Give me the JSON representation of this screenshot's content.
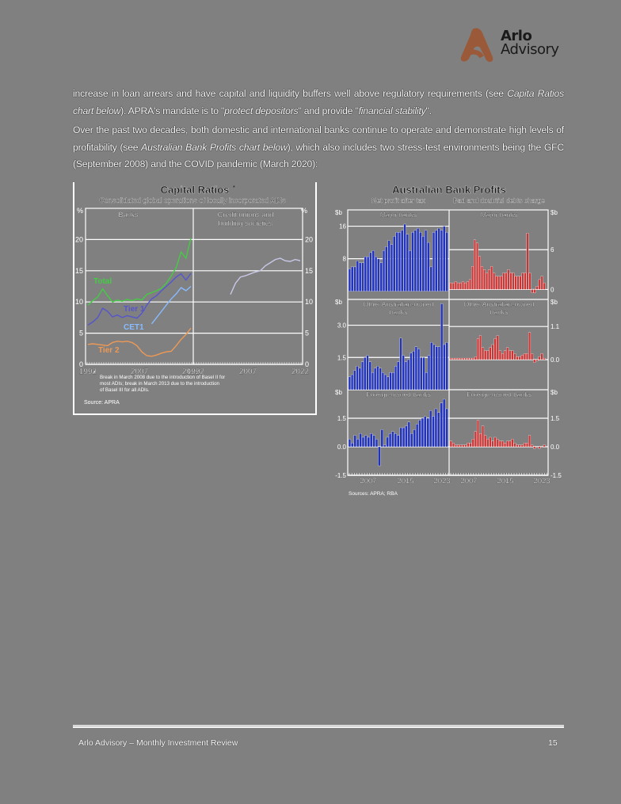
{
  "brand": {
    "name_line1": "Arlo",
    "name_line2": "Advisory",
    "logo_color": "#9a5a3a"
  },
  "body": {
    "p1_a": "increase in loan arrears and have capital and liquidity buffers well above regulatory requirements (see ",
    "p1_em1": "Capita Ratios chart below",
    "p1_b": "). APRA's mandate is to \"",
    "p1_em2": "protect depositors",
    "p1_c": "\" and provide \"",
    "p1_em3": "financial stability",
    "p1_d": "\".",
    "p2_a": "Over the past two decades, both domestic and international banks continue to operate and demonstrate high levels of profitability (see ",
    "p2_em1": "Australian Bank Profits chart below",
    "p2_b": "), which also includes two stress-test environments being the GFC (September 2008) and the COVID pandemic (March 2020):"
  },
  "footer": {
    "left": "Arlo Advisory – Monthly Investment Review",
    "page_number": "15"
  },
  "chart_data": [
    {
      "type": "line",
      "title": "Capital Ratios",
      "title_superscript": "*",
      "subtitle": "Consolidated global operations of locally incorporated ADIs",
      "ylabel_left": "%",
      "ylabel_right": "%",
      "ylim": [
        0,
        25
      ],
      "yticks": [
        0,
        5,
        10,
        15,
        20
      ],
      "panels": [
        {
          "label": "Banks",
          "x_ticks": [
            "1992",
            "2007",
            "2022"
          ],
          "series": [
            {
              "name": "Total",
              "color": "#44cc44",
              "values": [
                9.5,
                10.2,
                10.8,
                12.1,
                11.0,
                10.0,
                10.3,
                10.1,
                10.4,
                10.2,
                10.5,
                10.3,
                11.2,
                11.5,
                11.8,
                12.2,
                13.0,
                14.2,
                15.5,
                18.0,
                17.0,
                20.2
              ]
            },
            {
              "name": "Tier 1",
              "color": "#5555cc",
              "values": [
                6.3,
                6.8,
                7.5,
                9.0,
                8.5,
                7.6,
                7.9,
                7.5,
                7.8,
                7.6,
                7.4,
                8.2,
                9.5,
                10.5,
                11.0,
                11.8,
                12.5,
                13.2,
                14.0,
                14.5,
                13.5,
                14.6
              ]
            },
            {
              "name": "CET1",
              "color": "#88bbff",
              "values": [
                null,
                null,
                null,
                null,
                null,
                null,
                null,
                null,
                null,
                null,
                null,
                null,
                null,
                6.5,
                7.5,
                8.5,
                9.5,
                10.5,
                11.3,
                12.3,
                11.8,
                12.5
              ]
            },
            {
              "name": "Tier 2",
              "color": "#ee9955",
              "values": [
                3.2,
                3.3,
                3.2,
                3.1,
                3.0,
                3.5,
                3.7,
                3.6,
                3.7,
                3.5,
                3.0,
                2.0,
                1.4,
                1.3,
                1.5,
                1.8,
                2.0,
                2.1,
                3.0,
                4.0,
                4.8,
                5.8
              ]
            }
          ]
        },
        {
          "label": "Credit unions and building societies",
          "x_ticks": [
            "1992",
            "2007",
            "2022"
          ],
          "series": [
            {
              "name": "Total",
              "color": "#c8c8e8",
              "values": [
                null,
                null,
                null,
                null,
                null,
                null,
                null,
                11.2,
                13.0,
                14.0,
                14.2,
                14.5,
                14.8,
                15.0,
                15.8,
                16.3,
                16.8,
                17.0,
                16.6,
                16.5,
                16.8,
                16.6
              ]
            }
          ]
        }
      ],
      "footnote": "* Break in March 2008 due to the introduction of Basel II for most ADIs; break in March 2013 due to the introduction of Basel III for all ADIs.",
      "source": "Source: APRA"
    },
    {
      "type": "bar",
      "title": "Australian Bank Profits",
      "column_titles": [
        "Net profit after tax",
        "Bad and doubtful debts charge"
      ],
      "unit": "$b",
      "x_ticks": [
        "2007",
        "2015",
        "2023"
      ],
      "rows": [
        {
          "label": "Major banks",
          "left_yticks": [
            "8",
            "16"
          ],
          "right_yticks": [
            "0",
            "6"
          ],
          "net_profit": {
            "color": "#2233bb",
            "values": [
              5.5,
              6.0,
              6.0,
              7.5,
              7.0,
              7.0,
              8.5,
              8.5,
              9.5,
              10.0,
              8.5,
              8.0,
              7.0,
              10.0,
              11.0,
              12.5,
              11.5,
              13.5,
              14.5,
              14.5,
              15.0,
              16.5,
              14.0,
              10.0,
              14.5,
              15.0,
              15.5,
              14.5,
              13.5,
              15.0,
              12.0,
              6.0,
              14.5,
              15.0,
              15.5,
              15.0,
              16.0,
              14.5
            ]
          },
          "bad_debts": {
            "color": "#cc3333",
            "values": [
              1.0,
              1.0,
              1.2,
              1.0,
              1.0,
              1.2,
              1.0,
              1.2,
              1.5,
              3.5,
              7.5,
              7.0,
              5.0,
              3.5,
              3.0,
              2.5,
              3.0,
              3.5,
              2.5,
              2.0,
              2.0,
              2.0,
              2.5,
              2.5,
              3.0,
              2.5,
              2.5,
              2.0,
              2.0,
              2.0,
              2.5,
              2.5,
              8.5,
              2.5,
              -0.5,
              -0.5,
              0.5,
              1.5,
              2.0,
              1.0
            ]
          }
        },
        {
          "label": "Other Australian-owned banks",
          "left_yticks": [
            "1.5",
            "3.0"
          ],
          "right_yticks": [
            "0.0",
            "1.1"
          ],
          "net_profit": {
            "color": "#2233bb",
            "values": [
              0.6,
              0.7,
              0.9,
              1.1,
              1.0,
              1.3,
              1.5,
              1.6,
              1.3,
              0.8,
              1.0,
              1.1,
              1.0,
              0.8,
              0.7,
              0.6,
              0.8,
              0.8,
              1.1,
              1.3,
              2.4,
              1.6,
              1.3,
              1.4,
              1.7,
              1.8,
              2.0,
              1.9,
              1.5,
              1.5,
              0.8,
              1.6,
              2.2,
              2.1,
              2.0,
              2.0,
              4.0,
              2.1,
              2.2
            ]
          },
          "bad_debts": {
            "color": "#cc3333",
            "values": [
              0.05,
              0.05,
              0.05,
              0.05,
              0.05,
              0.05,
              0.05,
              0.05,
              0.05,
              0.05,
              0.1,
              0.7,
              0.8,
              0.4,
              0.3,
              0.3,
              0.4,
              0.5,
              0.7,
              0.8,
              0.3,
              0.2,
              0.3,
              0.4,
              0.3,
              0.3,
              0.2,
              0.1,
              0.1,
              0.15,
              0.2,
              0.2,
              0.9,
              0.2,
              -0.1,
              -0.05,
              0.1,
              0.2,
              0.05
            ]
          }
        },
        {
          "label": "Foreign-owned banks",
          "left_yticks": [
            "-1.5",
            "0.0",
            "1.5"
          ],
          "right_yticks": [
            "-1.5",
            "0.0",
            "1.5"
          ],
          "net_profit": {
            "color": "#2233bb",
            "values": [
              0.4,
              0.2,
              0.6,
              0.4,
              0.7,
              0.5,
              0.6,
              0.5,
              0.7,
              0.6,
              0.4,
              -1.0,
              0.9,
              0.1,
              0.5,
              0.7,
              0.8,
              0.7,
              0.6,
              1.0,
              1.0,
              1.1,
              1.3,
              0.7,
              0.9,
              1.2,
              1.4,
              1.5,
              1.6,
              1.5,
              1.9,
              1.6,
              2.0,
              1.8,
              2.3,
              2.5,
              2.0
            ]
          },
          "bad_debts": {
            "color": "#cc3333",
            "values": [
              0.3,
              0.2,
              0.1,
              0.1,
              0.1,
              0.1,
              0.1,
              0.2,
              0.2,
              0.4,
              0.8,
              1.4,
              0.7,
              1.1,
              0.6,
              0.4,
              0.5,
              0.3,
              0.5,
              0.4,
              0.3,
              0.3,
              0.2,
              0.3,
              0.3,
              0.4,
              0.2,
              0.1,
              0.1,
              0.1,
              0.2,
              0.2,
              0.6,
              0.1,
              -0.1,
              0.0,
              -0.1,
              0.0,
              0.1
            ]
          }
        }
      ],
      "source": "Sources: APRA; RBA"
    }
  ]
}
